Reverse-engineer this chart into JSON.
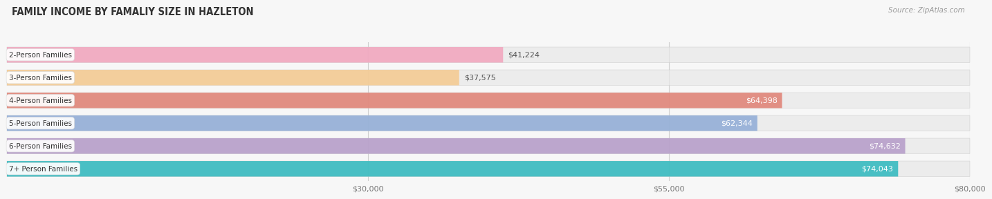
{
  "title": "FAMILY INCOME BY FAMALIY SIZE IN HAZLETON",
  "source": "Source: ZipAtlas.com",
  "categories": [
    "2-Person Families",
    "3-Person Families",
    "4-Person Families",
    "5-Person Families",
    "6-Person Families",
    "7+ Person Families"
  ],
  "values": [
    41224,
    37575,
    64398,
    62344,
    74632,
    74043
  ],
  "labels": [
    "$41,224",
    "$37,575",
    "$64,398",
    "$62,344",
    "$74,632",
    "$74,043"
  ],
  "bar_colors": [
    "#f2a3bc",
    "#f5c98e",
    "#e07f72",
    "#8eabd6",
    "#b49ac8",
    "#2cb8bd"
  ],
  "xmin": 0,
  "xmax": 80000,
  "xticks": [
    30000,
    55000,
    80000
  ],
  "xtick_labels": [
    "$30,000",
    "$55,000",
    "$80,000"
  ],
  "fig_width": 14.06,
  "fig_height": 3.05,
  "bg_color": "#f7f7f7",
  "bar_bg_color": "#e8e8e8",
  "label_inside_color": "#ffffff",
  "label_outside_color": "#555555",
  "label_threshold": 45000,
  "bar_height": 0.68,
  "bar_gap": 0.32
}
